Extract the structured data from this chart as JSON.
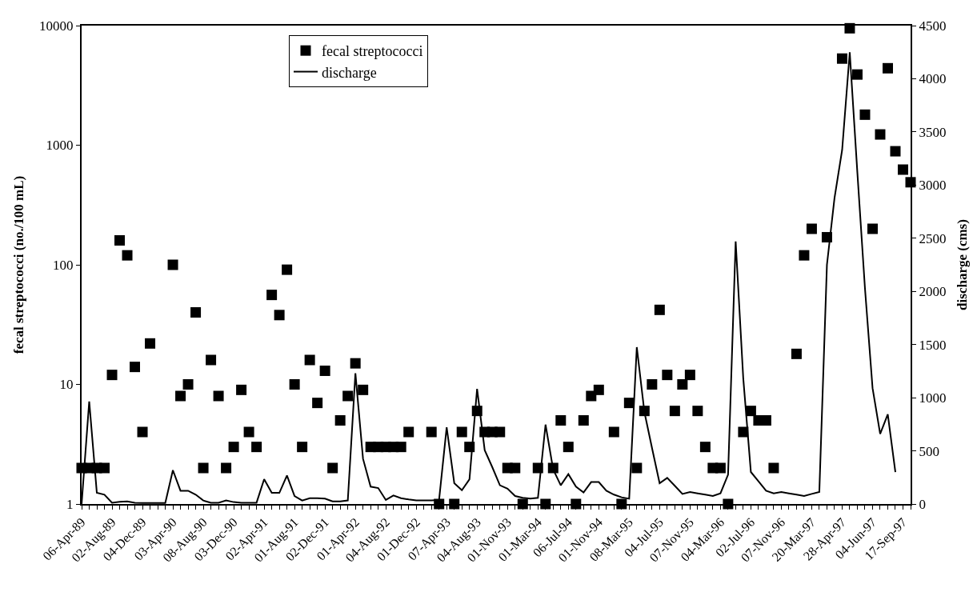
{
  "chart_data": {
    "type": "scatter",
    "categories": [
      "06-Apr-89",
      null,
      null,
      null,
      "02-Aug-89",
      null,
      null,
      null,
      "04-Dec-89",
      null,
      null,
      null,
      "03-Apr-90",
      null,
      null,
      null,
      "08-Aug-90",
      null,
      null,
      null,
      "03-Dec-90",
      null,
      null,
      null,
      "02-Apr-91",
      null,
      null,
      null,
      "01-Aug-91",
      null,
      null,
      null,
      "02-Dec-91",
      null,
      null,
      null,
      "01-Apr-92",
      null,
      null,
      null,
      "04-Aug-92",
      null,
      null,
      null,
      "01-Dec-92",
      null,
      null,
      null,
      "07-Apr-93",
      null,
      null,
      null,
      "04-Aug-93",
      null,
      null,
      null,
      "01-Nov-93",
      null,
      null,
      null,
      "01-Mar-94",
      null,
      null,
      null,
      "06-Jul-94",
      null,
      null,
      null,
      "01-Nov-94",
      null,
      null,
      null,
      "08-Mar-95",
      null,
      null,
      null,
      "04-Jul-95",
      null,
      null,
      null,
      "07-Nov-95",
      null,
      null,
      null,
      "04-Mar-96",
      null,
      null,
      null,
      "02-Jul-96",
      null,
      null,
      null,
      "07-Nov-96",
      null,
      null,
      null,
      "20-Mar-97",
      null,
      null,
      null,
      "28-Apr-97",
      null,
      null,
      null,
      "04-Jun-97",
      null,
      null,
      null,
      "17-Sep-97",
      null
    ],
    "ylabel": "fecal streptococci (no./100 mL)",
    "y2label": "discharge (cms)",
    "log": "y",
    "ylim": [
      1,
      10000
    ],
    "yticks": [
      1,
      10,
      100,
      1000,
      10000
    ],
    "y2lim": [
      0,
      4500
    ],
    "y2ticks": [
      0,
      500,
      1000,
      1500,
      2000,
      2500,
      3000,
      3500,
      4000,
      4500
    ],
    "legend": "top",
    "series": [
      {
        "name": "fecal streptococci",
        "marker": "square",
        "color": "#000000",
        "values": [
          2,
          2,
          2,
          2,
          12,
          160,
          120,
          14,
          4,
          22,
          null,
          null,
          100,
          8,
          10,
          40,
          2,
          16,
          8,
          2,
          3,
          9,
          4,
          3,
          null,
          56,
          38,
          91,
          10,
          3,
          16,
          7,
          13,
          2,
          5,
          8,
          15,
          9,
          3,
          3,
          3,
          3,
          3,
          4,
          null,
          null,
          4,
          1,
          null,
          1,
          4,
          3,
          6,
          4,
          4,
          4,
          2,
          2,
          1,
          null,
          2,
          1,
          2,
          5,
          3,
          1,
          5,
          8,
          9,
          null,
          4,
          1,
          7,
          2,
          6,
          10,
          42,
          12,
          6,
          10,
          12,
          6,
          3,
          2,
          2,
          1,
          null,
          4,
          6,
          5,
          5,
          2,
          null,
          null,
          18,
          120,
          200,
          null,
          170,
          null,
          5300,
          9500,
          3900,
          1800,
          200,
          1230,
          4400,
          890,
          625,
          490
        ]
      },
      {
        "name": "discharge",
        "type": "line",
        "axis": "y2",
        "marker": "none",
        "line_style": "solid",
        "color": "#000000",
        "values": [
          0,
          965,
          105,
          88,
          12,
          20,
          25,
          12,
          10,
          10,
          10,
          10,
          318,
          125,
          125,
          88,
          33,
          12,
          12,
          33,
          18,
          12,
          12,
          12,
          233,
          105,
          105,
          268,
          75,
          33,
          55,
          55,
          50,
          25,
          25,
          33,
          1230,
          426,
          163,
          150,
          38,
          80,
          55,
          43,
          33,
          33,
          33,
          38,
          722,
          196,
          130,
          233,
          1083,
          507,
          346,
          176,
          145,
          75,
          58,
          50,
          58,
          747,
          326,
          176,
          281,
          163,
          108,
          206,
          206,
          125,
          88,
          63,
          50,
          1475,
          865,
          527,
          196,
          246,
          171,
          95,
          113,
          100,
          88,
          75,
          100,
          276,
          2470,
          1180,
          301,
          213,
          125,
          100,
          113,
          100,
          88,
          75,
          95,
          113,
          2250,
          2880,
          3330,
          4250,
          3120,
          2030,
          1090,
          660,
          843,
          300,
          null,
          null
        ]
      }
    ]
  }
}
